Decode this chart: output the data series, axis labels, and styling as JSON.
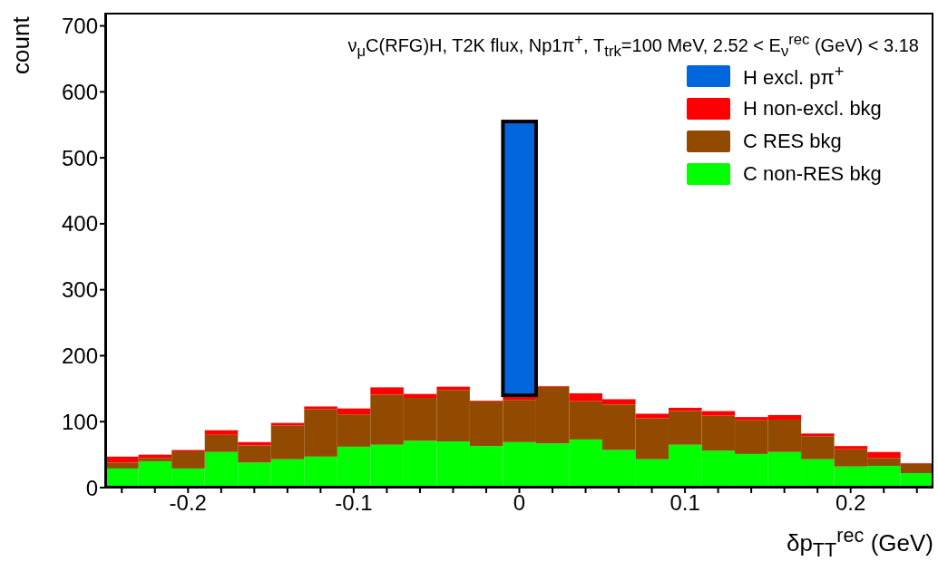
{
  "chart_data": {
    "type": "bar",
    "title": "ν$_{μ}$C(RFG)H, T2K flux, Np1π$^{+}$, T$_{trk}$=100 MeV, 2.52 < E$_{ν}$$^{rec}$ (GeV) < 3.18",
    "xlabel": "δp$_{TT}$$^{rec}$ (GeV)",
    "ylabel": "count",
    "x": [
      -0.24,
      -0.22,
      -0.2,
      -0.18,
      -0.16,
      -0.14,
      -0.12,
      -0.1,
      -0.08,
      -0.06,
      -0.04,
      -0.02,
      0,
      0.02,
      0.04,
      0.06,
      0.08,
      0.1,
      0.12,
      0.14,
      0.16,
      0.18,
      0.2,
      0.22,
      0.24
    ],
    "stacked": true,
    "series": [
      {
        "name": "C non-RES bkg",
        "color": "#00ff00",
        "values": [
          29,
          40,
          29,
          54,
          38,
          43,
          47,
          62,
          65,
          71,
          70,
          63,
          69,
          67,
          73,
          57,
          43,
          65,
          56,
          51,
          54,
          43,
          32,
          33,
          22
        ]
      },
      {
        "name": "C RES bkg",
        "color": "#924a00",
        "values": [
          9,
          5,
          26,
          26,
          26,
          51,
          72,
          49,
          76,
          65,
          78,
          68,
          64,
          86,
          58,
          69,
          62,
          51,
          53,
          51,
          49,
          35,
          26,
          12,
          14
        ]
      },
      {
        "name": "H non-excl. bkg",
        "color": "#ff0000",
        "values": [
          9,
          5,
          2,
          7,
          5,
          4,
          4,
          9,
          11,
          6,
          5,
          1,
          7,
          1,
          12,
          8,
          7,
          5,
          7,
          5,
          7,
          4,
          5,
          9,
          1
        ]
      },
      {
        "name": "H excl. pπ$^{+}$",
        "color": "#0066dd",
        "values": [
          null,
          null,
          null,
          null,
          null,
          null,
          null,
          null,
          null,
          null,
          null,
          null,
          415,
          null,
          null,
          null,
          null,
          null,
          null,
          null,
          null,
          null,
          null,
          null,
          null
        ]
      }
    ],
    "xlim": [
      -0.25,
      0.25
    ],
    "xticks": [
      {
        "value": -0.24,
        "label": null
      },
      {
        "value": -0.22,
        "label": null
      },
      -0.2,
      {
        "value": -0.18,
        "label": null
      },
      {
        "value": -0.16,
        "label": null
      },
      {
        "value": -0.14,
        "label": null
      },
      {
        "value": -0.12,
        "label": null
      },
      -0.1,
      {
        "value": -0.08,
        "label": null
      },
      {
        "value": -0.06,
        "label": null
      },
      {
        "value": -0.04,
        "label": null
      },
      {
        "value": -0.02,
        "label": null
      },
      0,
      {
        "value": 0.02,
        "label": null
      },
      {
        "value": 0.04,
        "label": null
      },
      {
        "value": 0.06,
        "label": null
      },
      {
        "value": 0.08,
        "label": null
      },
      0.1,
      {
        "value": 0.12,
        "label": null
      },
      {
        "value": 0.14,
        "label": null
      },
      {
        "value": 0.16,
        "label": null
      },
      {
        "value": 0.18,
        "label": null
      },
      0.2,
      {
        "value": 0.22,
        "label": null
      },
      {
        "value": 0.24,
        "label": null
      }
    ],
    "ylim": [
      0,
      720
    ],
    "yticks": [
      0,
      100,
      200,
      300,
      400,
      500,
      600,
      700
    ],
    "grid": false,
    "legend": "top right"
  }
}
